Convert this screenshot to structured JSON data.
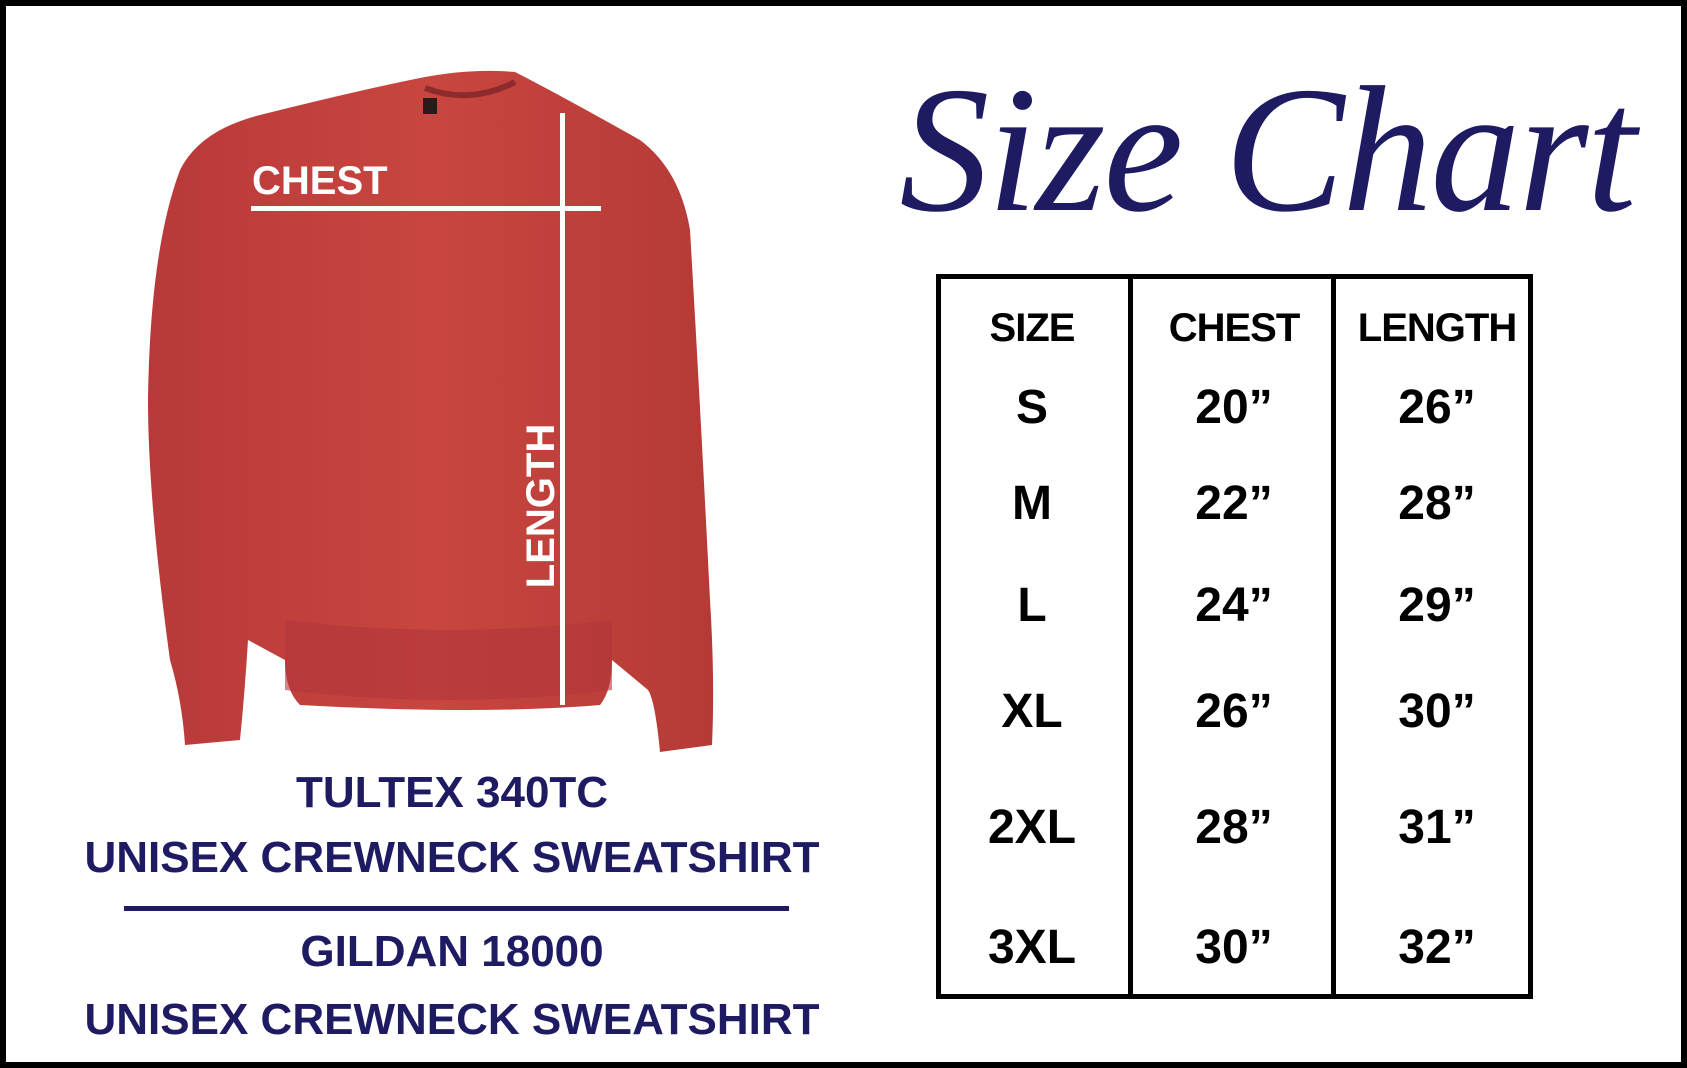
{
  "title": "Size Chart",
  "image_labels": {
    "chest": "CHEST",
    "length": "LENGTH"
  },
  "products": [
    {
      "brand": "TULTEX 340TC",
      "type": "UNISEX CREWNECK SWEATSHIRT"
    },
    {
      "brand": "GILDAN 18000",
      "type": "UNISEX CREWNECK SWEATSHIRT"
    }
  ],
  "table": {
    "headers": [
      "SIZE",
      "CHEST",
      "LENGTH"
    ],
    "rows": [
      [
        "S",
        "20”",
        "26”"
      ],
      [
        "M",
        "22”",
        "28”"
      ],
      [
        "L",
        "24”",
        "29”"
      ],
      [
        "XL",
        "26”",
        "30”"
      ],
      [
        "2XL",
        "28”",
        "31”"
      ],
      [
        "3XL",
        "30”",
        "32”"
      ]
    ]
  },
  "colors": {
    "accent": "#1f1b63",
    "sweatshirt": "#c0403b"
  }
}
